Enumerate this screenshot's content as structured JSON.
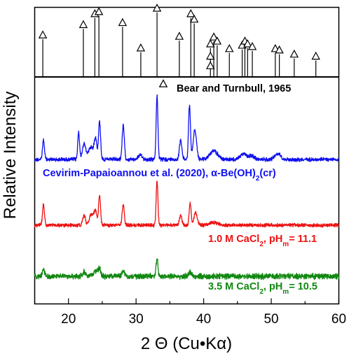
{
  "chart_data": {
    "type": "line",
    "xlabel": "2 Θ (Cu•Kα)",
    "ylabel": "Relative Intensity",
    "xlim": [
      15,
      60
    ],
    "x_ticks": [
      20,
      30,
      40,
      50,
      60
    ],
    "grid": false,
    "reference": {
      "legend": "Bear and Turnbull, 1965",
      "color": "#000000",
      "marker": "open-triangle",
      "peaks": [
        {
          "x": 16.2,
          "y": 0.55
        },
        {
          "x": 22.2,
          "y": 0.7
        },
        {
          "x": 23.9,
          "y": 0.86
        },
        {
          "x": 24.5,
          "y": 0.89
        },
        {
          "x": 28.0,
          "y": 0.73
        },
        {
          "x": 30.7,
          "y": 0.36
        },
        {
          "x": 33.1,
          "y": 0.94
        },
        {
          "x": 36.4,
          "y": 0.53
        },
        {
          "x": 38.1,
          "y": 0.86
        },
        {
          "x": 38.6,
          "y": 0.78
        },
        {
          "x": 41.0,
          "y": 0.42
        },
        {
          "x": 41.5,
          "y": 0.52
        },
        {
          "x": 42.0,
          "y": 0.46
        },
        {
          "x": 43.8,
          "y": 0.35
        },
        {
          "x": 45.7,
          "y": 0.4
        },
        {
          "x": 46.1,
          "y": 0.46
        },
        {
          "x": 46.5,
          "y": 0.42
        },
        {
          "x": 47.2,
          "y": 0.38
        },
        {
          "x": 50.6,
          "y": 0.35
        },
        {
          "x": 51.2,
          "y": 0.33
        },
        {
          "x": 53.4,
          "y": 0.27
        },
        {
          "x": 56.6,
          "y": 0.24
        }
      ],
      "minor_peaks": [
        {
          "x": 41.0,
          "y": 0.24
        },
        {
          "x": 41.0,
          "y": 0.1
        }
      ]
    },
    "series": [
      {
        "name": "Cevirim-Papaioannou et al. (2020), α-Be(OH)",
        "name_sub": "2",
        "name_suffix": "(cr)",
        "color": "#1010f0",
        "baseline": 228,
        "noise": 2.2,
        "peaks": [
          {
            "x": 16.3,
            "h": 28,
            "w": 0.14
          },
          {
            "x": 21.5,
            "h": 40,
            "w": 0.13
          },
          {
            "x": 22.3,
            "h": 22,
            "w": 0.25
          },
          {
            "x": 23.3,
            "h": 18,
            "w": 0.35
          },
          {
            "x": 24.0,
            "h": 30,
            "w": 0.2
          },
          {
            "x": 24.6,
            "h": 54,
            "w": 0.15
          },
          {
            "x": 28.1,
            "h": 48,
            "w": 0.16
          },
          {
            "x": 30.6,
            "h": 6,
            "w": 0.3
          },
          {
            "x": 33.1,
            "h": 92,
            "w": 0.13
          },
          {
            "x": 36.6,
            "h": 28,
            "w": 0.18
          },
          {
            "x": 37.9,
            "h": 78,
            "w": 0.14
          },
          {
            "x": 38.7,
            "h": 42,
            "w": 0.25
          },
          {
            "x": 41.5,
            "h": 12,
            "w": 0.6
          },
          {
            "x": 45.8,
            "h": 8,
            "w": 0.4
          },
          {
            "x": 47.0,
            "h": 5,
            "w": 0.5
          },
          {
            "x": 50.6,
            "h": 5,
            "w": 0.3
          },
          {
            "x": 51.2,
            "h": 7,
            "w": 0.3
          }
        ]
      },
      {
        "name": "1.0 M CaCl",
        "name_sub": "2",
        "name_suffix": ", pH",
        "name_sub2": "m",
        "name_value": "= 11.1",
        "color": "#ee1111",
        "baseline": 322,
        "noise": 2.0,
        "peaks": [
          {
            "x": 16.3,
            "h": 30,
            "w": 0.14
          },
          {
            "x": 22.3,
            "h": 14,
            "w": 0.2
          },
          {
            "x": 23.4,
            "h": 16,
            "w": 0.3
          },
          {
            "x": 24.0,
            "h": 20,
            "w": 0.2
          },
          {
            "x": 24.6,
            "h": 42,
            "w": 0.15
          },
          {
            "x": 28.1,
            "h": 28,
            "w": 0.16
          },
          {
            "x": 33.1,
            "h": 64,
            "w": 0.13
          },
          {
            "x": 36.6,
            "h": 14,
            "w": 0.18
          },
          {
            "x": 38.0,
            "h": 32,
            "w": 0.14
          },
          {
            "x": 38.8,
            "h": 18,
            "w": 0.25
          },
          {
            "x": 41.5,
            "h": 4,
            "w": 0.6
          }
        ]
      },
      {
        "name": "3.5 M CaCl",
        "name_sub": "2",
        "name_suffix": ", pH",
        "name_sub2": "m",
        "name_value": "= 10.5",
        "color": "#118811",
        "baseline": 395,
        "noise": 3.2,
        "peaks": [
          {
            "x": 16.3,
            "h": 10,
            "w": 0.14
          },
          {
            "x": 22.3,
            "h": 6,
            "w": 0.2
          },
          {
            "x": 24.1,
            "h": 8,
            "w": 0.3
          },
          {
            "x": 24.6,
            "h": 10,
            "w": 0.15
          },
          {
            "x": 28.1,
            "h": 7,
            "w": 0.2
          },
          {
            "x": 33.1,
            "h": 26,
            "w": 0.13
          },
          {
            "x": 38.0,
            "h": 6,
            "w": 0.2
          }
        ]
      }
    ]
  }
}
